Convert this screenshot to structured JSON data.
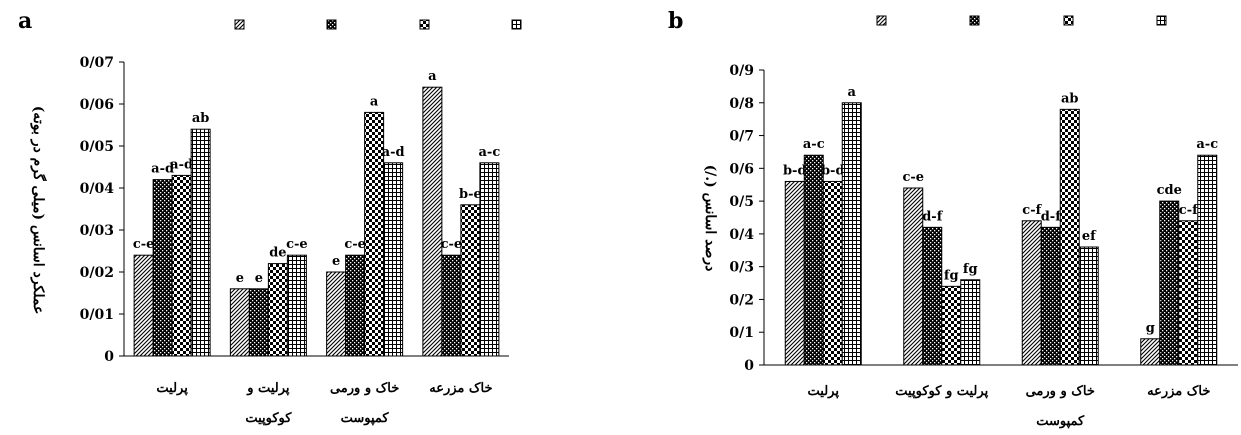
{
  "chart_data": [
    {
      "panel_label": "a",
      "type": "bar",
      "ylabel": "عملکرد اسانس (میلی گرم در بوته)",
      "ylim": [
        0,
        0.07
      ],
      "yticks": [
        "0",
        "0/01",
        "0/02",
        "0/03",
        "0/04",
        "0/05",
        "0/06",
        "0/07"
      ],
      "categories": [
        [
          "پرلیت"
        ],
        [
          "پرلیت و",
          "کوکوپیت"
        ],
        [
          "خاک و ورمی",
          "کمپوست"
        ],
        [
          "خاک مزرعه"
        ]
      ],
      "legend_position": "top",
      "series": [
        {
          "pattern": "diagonal",
          "values": [
            0.024,
            0.016,
            0.02,
            0.064
          ],
          "letters": [
            "c-e",
            "e",
            "e",
            "a"
          ]
        },
        {
          "pattern": "dots",
          "values": [
            0.042,
            0.016,
            0.024,
            0.024
          ],
          "letters": [
            "a-d",
            "e",
            "c-e",
            "c-e"
          ]
        },
        {
          "pattern": "checker",
          "values": [
            0.043,
            0.022,
            0.058,
            0.036
          ],
          "letters": [
            "a-d",
            "de",
            "a",
            "b-e"
          ]
        },
        {
          "pattern": "grid",
          "values": [
            0.054,
            0.024,
            0.046,
            0.046
          ],
          "letters": [
            "ab",
            "c-e",
            "a-d",
            "a-c"
          ]
        }
      ]
    },
    {
      "panel_label": "b",
      "type": "bar",
      "ylabel": "درصد اسانس (./)",
      "ylim": [
        0,
        0.9
      ],
      "yticks": [
        "0",
        "0/1",
        "0/2",
        "0/3",
        "0/4",
        "0/5",
        "0/6",
        "0/7",
        "0/8",
        "0/9"
      ],
      "categories": [
        [
          "پرلیت"
        ],
        [
          "پرلیت و کوکوپیت"
        ],
        [
          "خاک و ورمی",
          "کمپوست"
        ],
        [
          "خاک مزرعه"
        ]
      ],
      "legend_position": "top",
      "series": [
        {
          "pattern": "diagonal",
          "values": [
            0.56,
            0.54,
            0.44,
            0.08
          ],
          "letters": [
            "b-d",
            "c-e",
            "c-f",
            "g"
          ]
        },
        {
          "pattern": "dots",
          "values": [
            0.64,
            0.42,
            0.42,
            0.5
          ],
          "letters": [
            "a-c",
            "d-f",
            "d-f",
            "cde"
          ]
        },
        {
          "pattern": "checker",
          "values": [
            0.56,
            0.24,
            0.78,
            0.44
          ],
          "letters": [
            "b-d",
            "fg",
            "ab",
            "c-f"
          ]
        },
        {
          "pattern": "grid",
          "values": [
            0.8,
            0.26,
            0.36,
            0.64
          ],
          "letters": [
            "a",
            "fg",
            "ef",
            "a-c"
          ]
        }
      ]
    }
  ]
}
